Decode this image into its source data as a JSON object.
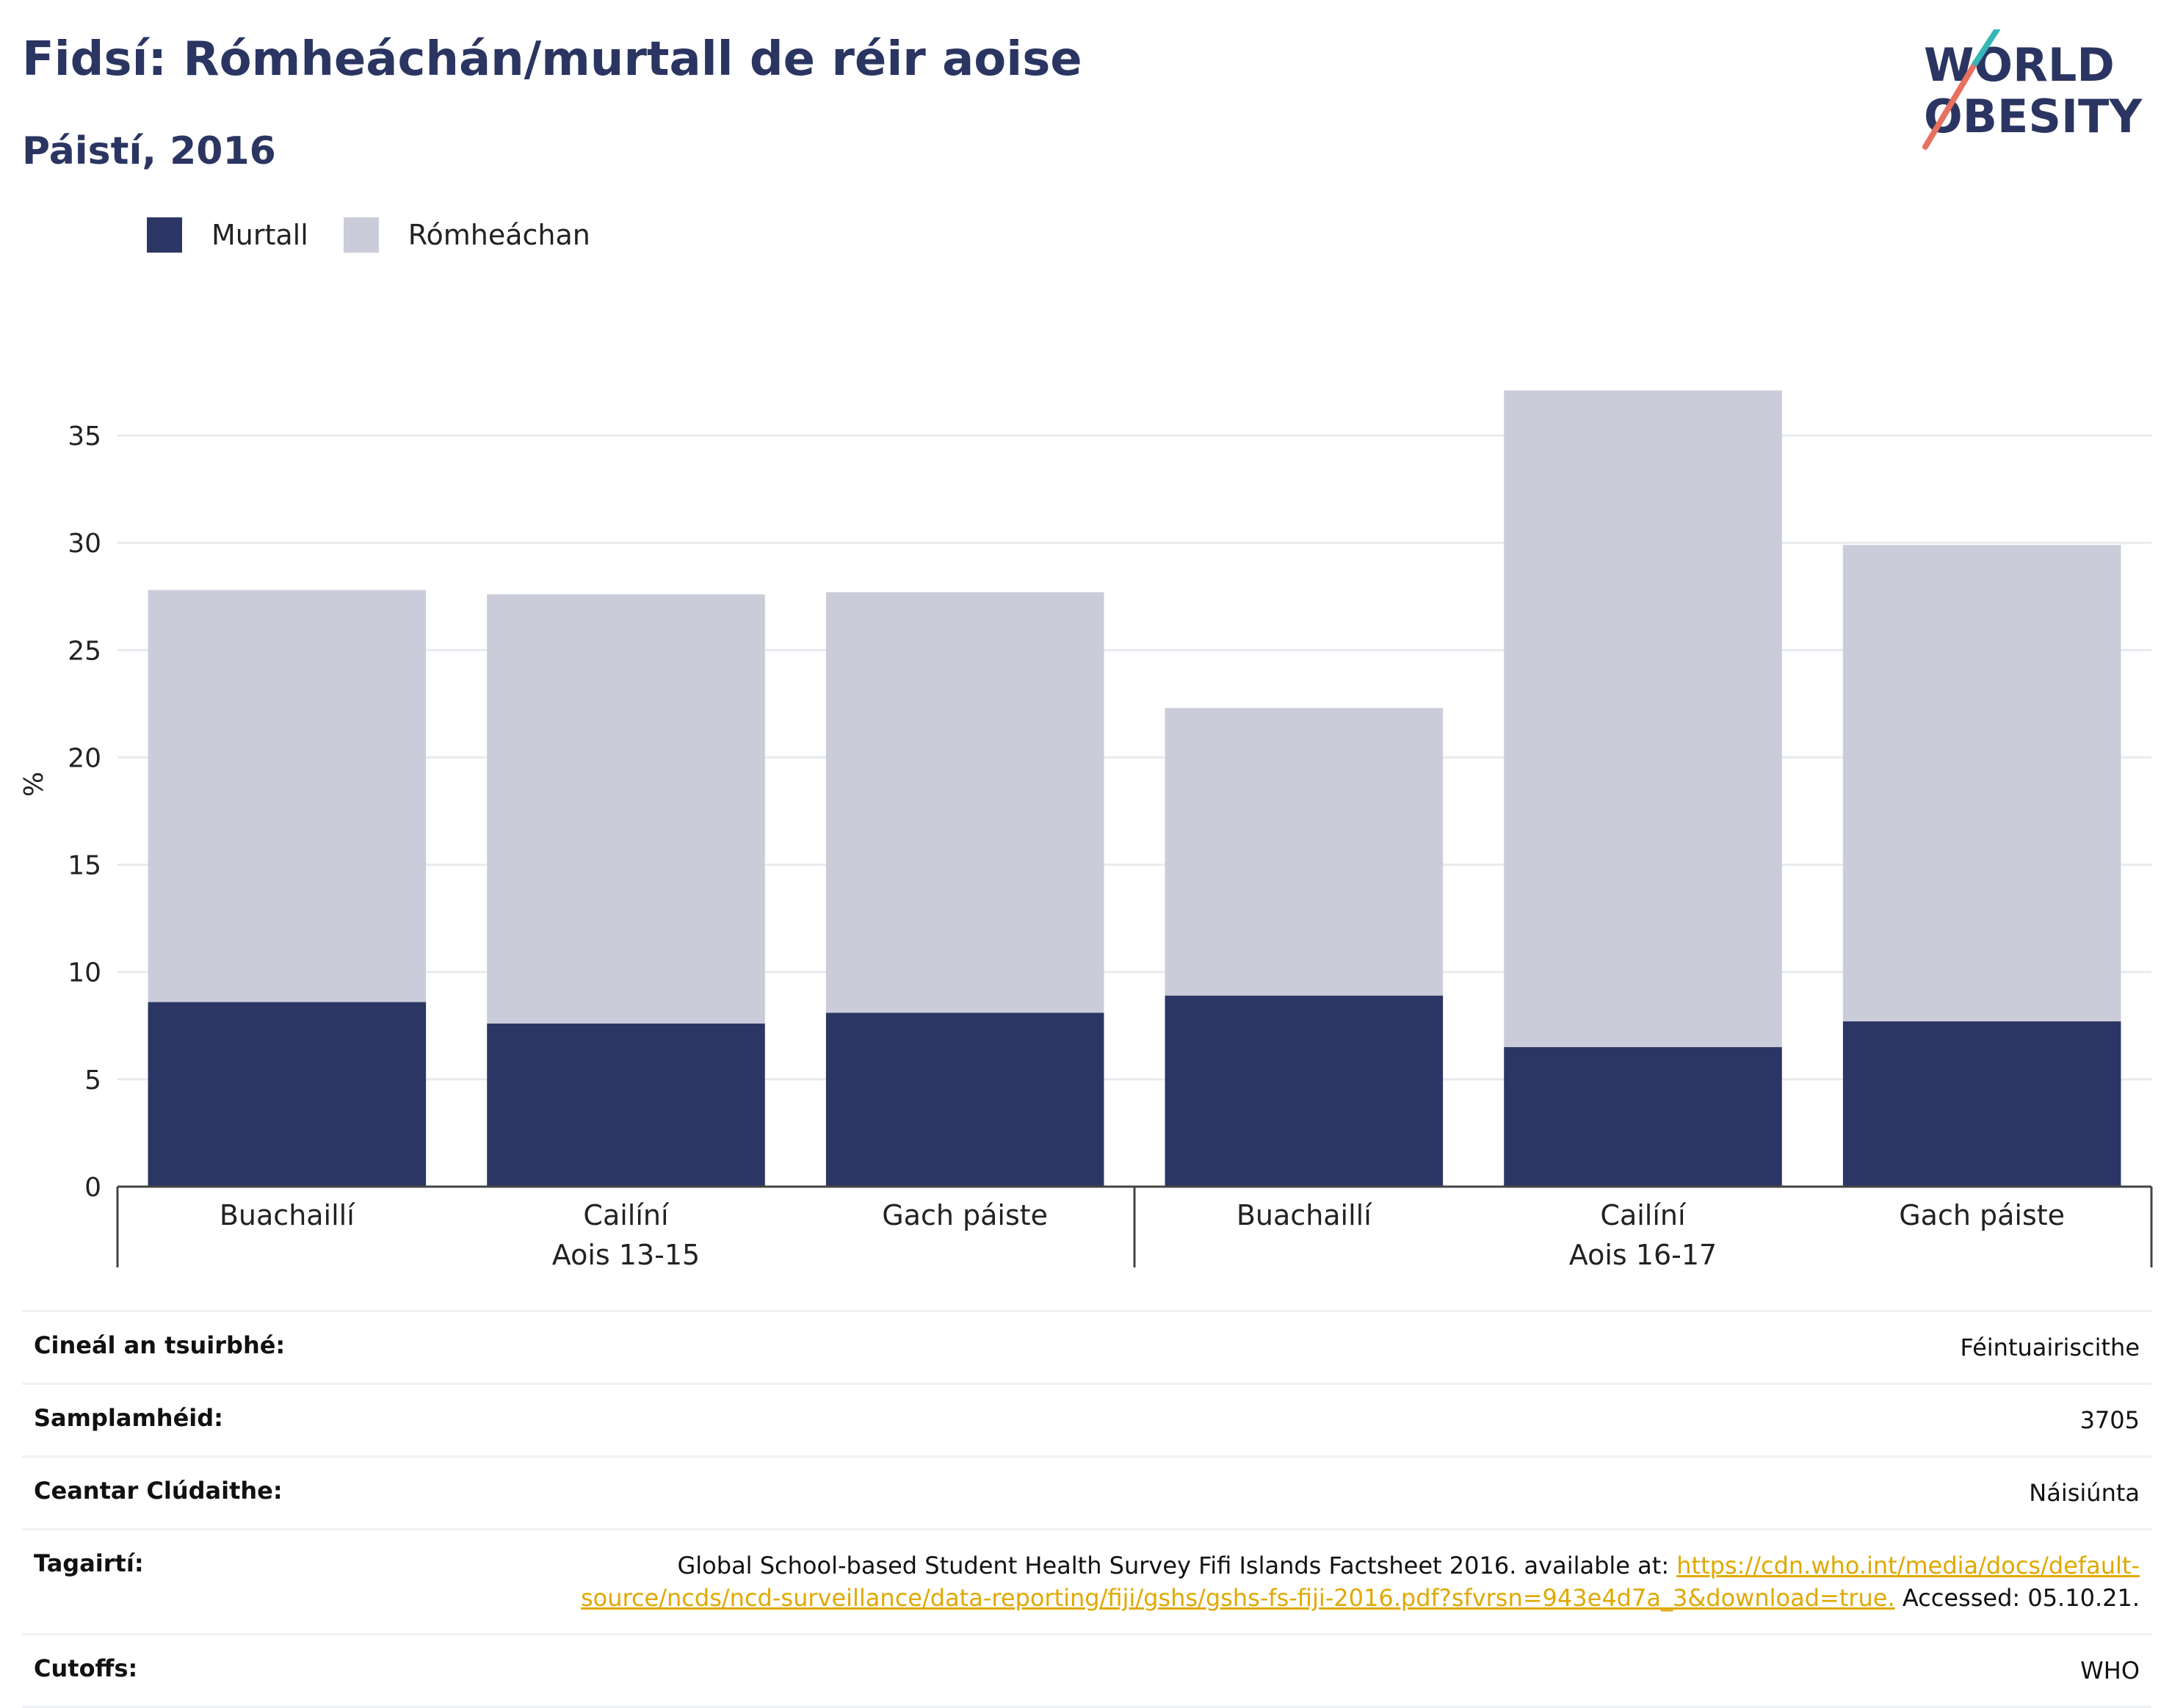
{
  "title": "Fidsí: Rómheáchán/murtall de réir aoise",
  "subtitle": "Páistí, 2016",
  "logo": {
    "line1": "WORLD",
    "line2": "OBESITY"
  },
  "colors": {
    "murtall": "#2b3664",
    "romheachan": "#cbccd9",
    "title": "#2b3562",
    "link": "#e0a800"
  },
  "chart_data": {
    "type": "bar",
    "stacked": true,
    "ylabel": "%",
    "ylim": [
      0,
      37.5
    ],
    "yticks": [
      0,
      5,
      10,
      15,
      20,
      25,
      30,
      35
    ],
    "grid": true,
    "legend_position": "top-left",
    "legend": [
      "Murtall",
      "Rómheáchan"
    ],
    "groups": [
      {
        "label": "Aois 13-15",
        "categories": [
          "Buachaillí",
          "Cailíní",
          "Gach páiste"
        ]
      },
      {
        "label": "Aois 16-17",
        "categories": [
          "Buachaillí",
          "Cailíní",
          "Gach páiste"
        ]
      }
    ],
    "categories": [
      "Buachaillí",
      "Cailíní",
      "Gach páiste",
      "Buachaillí",
      "Cailíní",
      "Gach páiste"
    ],
    "series": [
      {
        "name": "Murtall",
        "values": [
          8.6,
          7.6,
          8.1,
          8.9,
          6.5,
          7.7
        ]
      },
      {
        "name": "Rómheáchan",
        "values": [
          19.2,
          20.0,
          19.6,
          13.4,
          30.6,
          22.2
        ]
      }
    ]
  },
  "info": {
    "survey_type_label": "Cineál an tsuirbhé:",
    "survey_type_value": "Féintuairiscithe",
    "sample_label": "Samplamhéid:",
    "sample_value": "3705",
    "area_label": "Ceantar Clúdaithe:",
    "area_value": "Náisiúnta",
    "references_label": "Tagairtí:",
    "references_text": "Global School-based Student Health Survey Fifi Islands Factsheet 2016. available at: ",
    "references_link": "https://cdn.who.int/media/docs/default-source/ncds/ncd-surveillance/data-reporting/fiji/gshs/gshs-fs-fiji-2016.pdf?sfvrsn=943e4d7a_3&download=true.",
    "references_accessed": " Accessed: 05.10.21.",
    "cutoffs_label": "Cutoffs:",
    "cutoffs_value": "WHO"
  }
}
